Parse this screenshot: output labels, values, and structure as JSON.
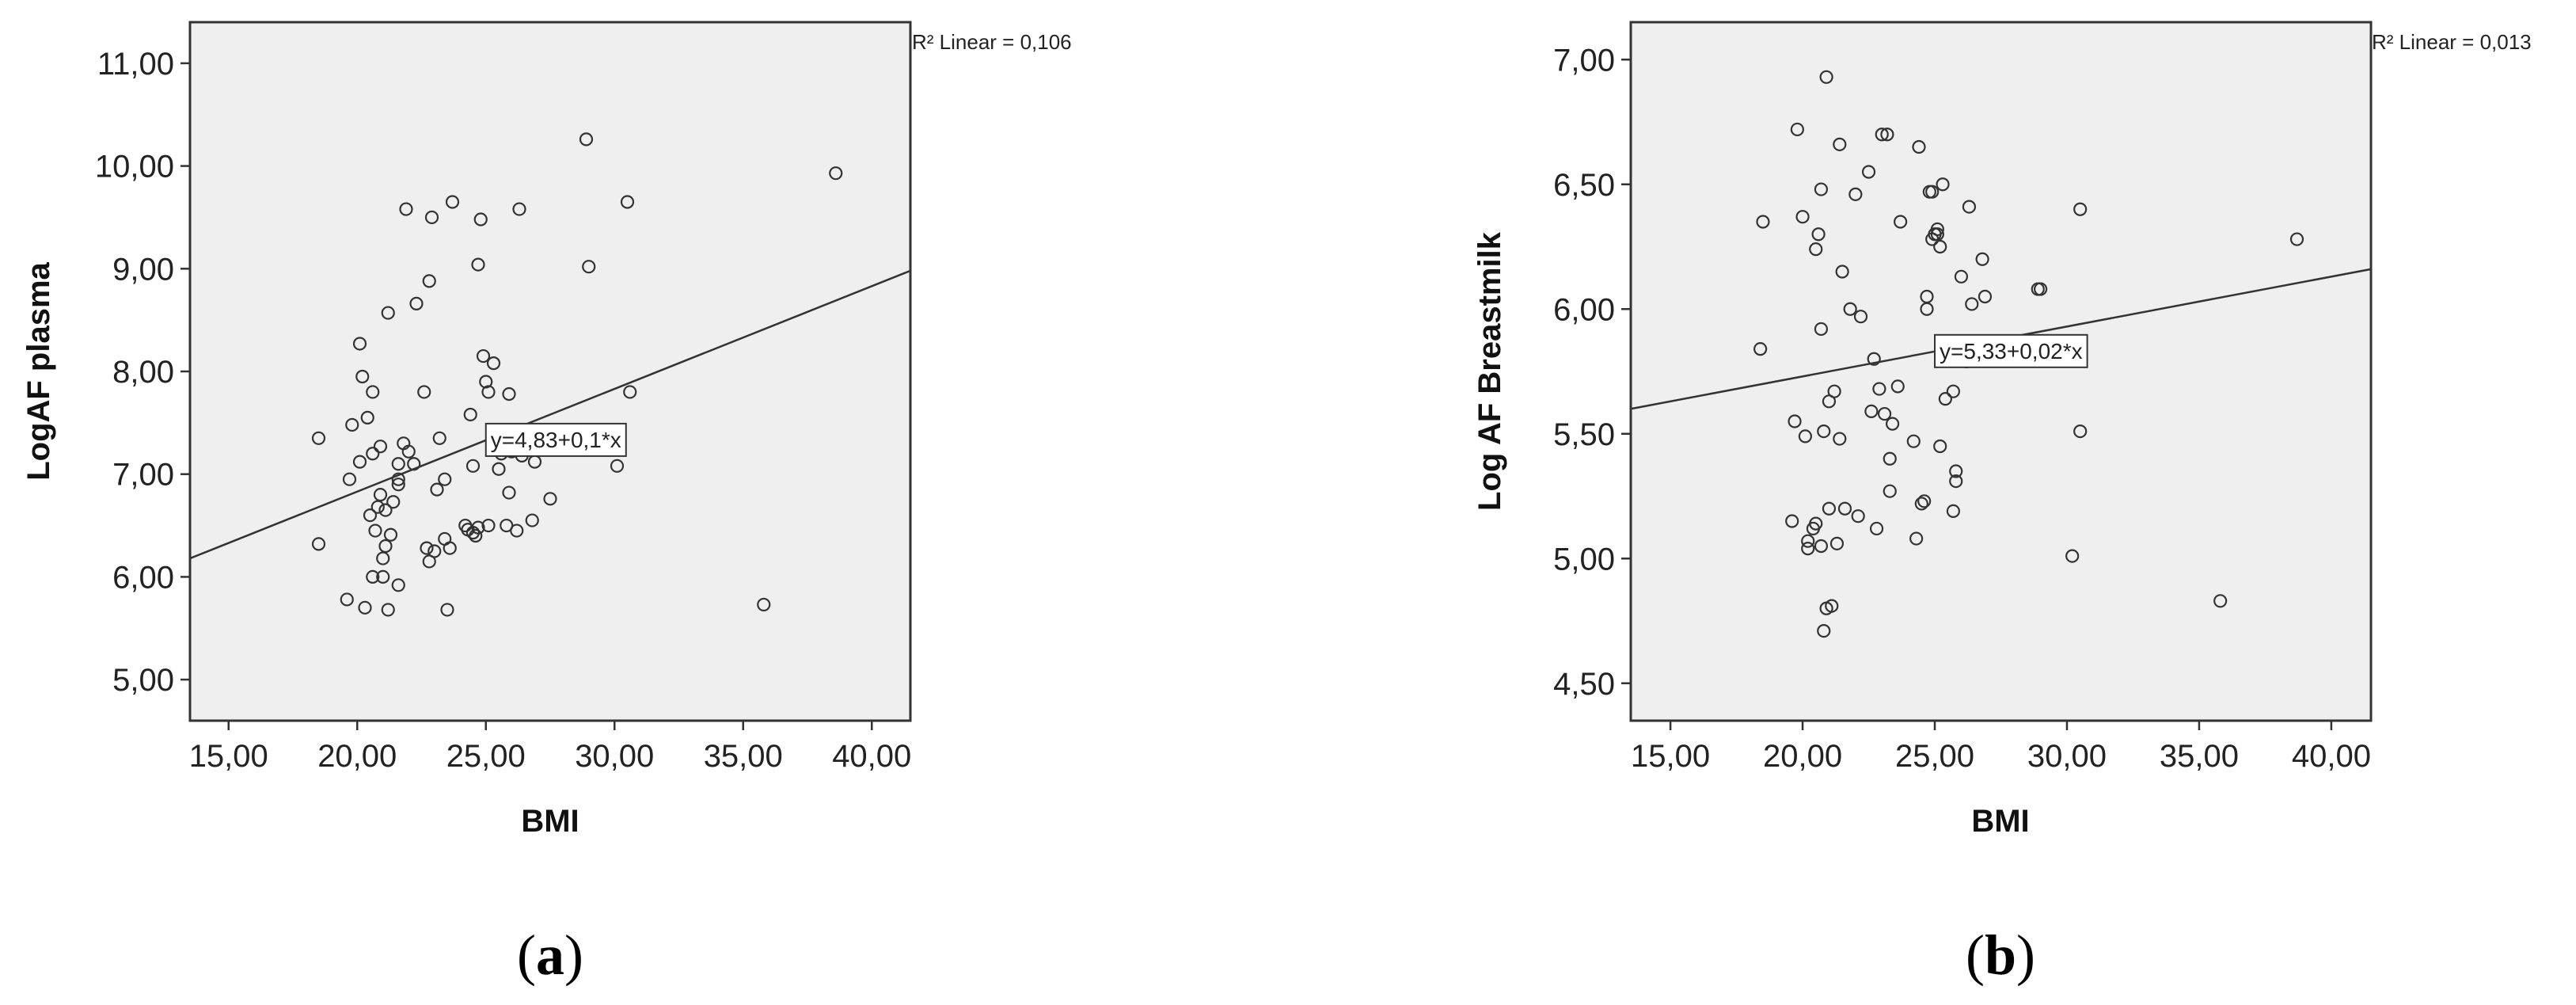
{
  "chart_data": [
    {
      "type": "scatter",
      "panel_label": "a",
      "xlabel": "BMI",
      "ylabel": "LogAF plasma",
      "xlim": [
        13.5,
        41.5
      ],
      "ylim": [
        4.6,
        11.4
      ],
      "x_ticks": [
        "15,00",
        "20,00",
        "25,00",
        "30,00",
        "35,00",
        "40,00"
      ],
      "y_ticks": [
        "5,00",
        "6,00",
        "7,00",
        "8,00",
        "9,00",
        "10,00",
        "11,00"
      ],
      "r2_label": "R² Linear = 0,106",
      "fit_label": "y=4,83+0,1*x",
      "fit": {
        "intercept": 4.83,
        "slope": 0.1
      },
      "grid": false,
      "points": [
        [
          18.5,
          6.32
        ],
        [
          18.5,
          7.35
        ],
        [
          19.6,
          5.78
        ],
        [
          19.7,
          6.95
        ],
        [
          19.8,
          7.48
        ],
        [
          20.1,
          7.12
        ],
        [
          20.1,
          8.27
        ],
        [
          20.2,
          7.95
        ],
        [
          20.3,
          5.7
        ],
        [
          20.4,
          7.55
        ],
        [
          20.5,
          6.6
        ],
        [
          20.6,
          6.0
        ],
        [
          20.6,
          7.2
        ],
        [
          20.6,
          7.8
        ],
        [
          20.7,
          6.45
        ],
        [
          20.8,
          6.68
        ],
        [
          20.9,
          6.8
        ],
        [
          20.9,
          7.27
        ],
        [
          21.0,
          6.0
        ],
        [
          21.0,
          6.18
        ],
        [
          21.1,
          6.3
        ],
        [
          21.1,
          6.65
        ],
        [
          21.2,
          5.68
        ],
        [
          21.2,
          8.57
        ],
        [
          21.3,
          6.41
        ],
        [
          21.4,
          6.73
        ],
        [
          21.6,
          6.9
        ],
        [
          21.6,
          6.95
        ],
        [
          21.6,
          7.1
        ],
        [
          21.6,
          5.92
        ],
        [
          21.8,
          7.3
        ],
        [
          21.9,
          9.58
        ],
        [
          22.0,
          7.22
        ],
        [
          22.2,
          7.1
        ],
        [
          22.3,
          8.66
        ],
        [
          22.6,
          7.8
        ],
        [
          22.7,
          6.28
        ],
        [
          22.8,
          6.15
        ],
        [
          22.8,
          8.88
        ],
        [
          22.9,
          9.5
        ],
        [
          23.0,
          6.25
        ],
        [
          23.1,
          6.85
        ],
        [
          23.2,
          7.35
        ],
        [
          23.4,
          6.95
        ],
        [
          23.4,
          6.37
        ],
        [
          23.5,
          5.68
        ],
        [
          23.6,
          6.28
        ],
        [
          23.7,
          9.65
        ],
        [
          24.2,
          6.5
        ],
        [
          24.3,
          6.46
        ],
        [
          24.4,
          7.58
        ],
        [
          24.5,
          6.43
        ],
        [
          24.5,
          7.08
        ],
        [
          24.6,
          6.4
        ],
        [
          24.7,
          9.04
        ],
        [
          24.7,
          6.48
        ],
        [
          24.8,
          9.48
        ],
        [
          24.9,
          8.15
        ],
        [
          25.0,
          7.9
        ],
        [
          25.1,
          7.8
        ],
        [
          25.1,
          6.5
        ],
        [
          25.3,
          7.4
        ],
        [
          25.3,
          8.08
        ],
        [
          25.5,
          7.05
        ],
        [
          25.6,
          7.2
        ],
        [
          25.8,
          6.5
        ],
        [
          25.9,
          7.78
        ],
        [
          25.9,
          6.82
        ],
        [
          26.0,
          7.22
        ],
        [
          26.2,
          6.45
        ],
        [
          26.3,
          9.58
        ],
        [
          26.4,
          7.18
        ],
        [
          26.8,
          6.55
        ],
        [
          26.9,
          7.12
        ],
        [
          27.5,
          6.76
        ],
        [
          28.9,
          10.26
        ],
        [
          29.0,
          9.02
        ],
        [
          30.1,
          7.08
        ],
        [
          30.5,
          9.65
        ],
        [
          30.6,
          7.8
        ],
        [
          35.8,
          5.73
        ],
        [
          38.6,
          9.93
        ]
      ]
    },
    {
      "type": "scatter",
      "panel_label": "b",
      "xlabel": "BMI",
      "ylabel": "Log AF Breastmilk",
      "xlim": [
        13.5,
        41.5
      ],
      "ylim": [
        4.35,
        7.15
      ],
      "x_ticks": [
        "15,00",
        "20,00",
        "25,00",
        "30,00",
        "35,00",
        "40,00"
      ],
      "y_ticks": [
        "4,50",
        "5,00",
        "5,50",
        "6,00",
        "6,50",
        "7,00"
      ],
      "r2_label": "R² Linear = 0,013",
      "fit_label": "y=5,33+0,02*x",
      "fit": {
        "intercept": 5.33,
        "slope": 0.02
      },
      "grid": false,
      "points": [
        [
          18.4,
          5.84
        ],
        [
          18.5,
          6.35
        ],
        [
          19.6,
          5.15
        ],
        [
          19.7,
          5.55
        ],
        [
          19.8,
          6.72
        ],
        [
          20.0,
          6.37
        ],
        [
          20.1,
          5.49
        ],
        [
          20.2,
          5.07
        ],
        [
          20.2,
          5.04
        ],
        [
          20.4,
          5.12
        ],
        [
          20.5,
          5.14
        ],
        [
          20.5,
          6.24
        ],
        [
          20.6,
          6.3
        ],
        [
          20.7,
          5.05
        ],
        [
          20.7,
          5.92
        ],
        [
          20.7,
          6.48
        ],
        [
          20.8,
          4.71
        ],
        [
          20.8,
          5.51
        ],
        [
          20.9,
          6.93
        ],
        [
          20.9,
          4.8
        ],
        [
          21.0,
          5.63
        ],
        [
          21.0,
          5.2
        ],
        [
          21.1,
          4.81
        ],
        [
          21.2,
          5.67
        ],
        [
          21.3,
          5.06
        ],
        [
          21.4,
          6.66
        ],
        [
          21.4,
          5.48
        ],
        [
          21.5,
          6.15
        ],
        [
          21.6,
          5.2
        ],
        [
          21.8,
          6.0
        ],
        [
          22.0,
          6.46
        ],
        [
          22.1,
          5.17
        ],
        [
          22.2,
          5.97
        ],
        [
          22.5,
          6.55
        ],
        [
          22.6,
          5.59
        ],
        [
          22.7,
          5.8
        ],
        [
          22.8,
          5.12
        ],
        [
          22.9,
          5.68
        ],
        [
          23.0,
          6.7
        ],
        [
          23.1,
          5.58
        ],
        [
          23.2,
          6.7
        ],
        [
          23.3,
          5.4
        ],
        [
          23.3,
          5.27
        ],
        [
          23.4,
          5.54
        ],
        [
          23.6,
          5.69
        ],
        [
          23.7,
          6.35
        ],
        [
          24.2,
          5.47
        ],
        [
          24.3,
          5.08
        ],
        [
          24.4,
          6.65
        ],
        [
          24.5,
          5.22
        ],
        [
          24.6,
          5.23
        ],
        [
          24.7,
          6.05
        ],
        [
          24.7,
          6.0
        ],
        [
          24.8,
          6.47
        ],
        [
          24.9,
          6.47
        ],
        [
          24.9,
          6.28
        ],
        [
          25.0,
          6.3
        ],
        [
          25.1,
          6.32
        ],
        [
          25.1,
          6.3
        ],
        [
          25.2,
          6.25
        ],
        [
          25.2,
          5.45
        ],
        [
          25.3,
          6.5
        ],
        [
          25.4,
          5.64
        ],
        [
          25.7,
          5.67
        ],
        [
          25.7,
          5.19
        ],
        [
          25.8,
          5.35
        ],
        [
          25.8,
          5.31
        ],
        [
          26.0,
          6.13
        ],
        [
          26.2,
          5.79
        ],
        [
          26.3,
          6.41
        ],
        [
          26.4,
          6.02
        ],
        [
          26.8,
          6.2
        ],
        [
          26.9,
          6.05
        ],
        [
          28.9,
          6.08
        ],
        [
          29.0,
          6.08
        ],
        [
          30.2,
          5.01
        ],
        [
          30.5,
          6.4
        ],
        [
          30.5,
          5.51
        ],
        [
          35.8,
          4.83
        ],
        [
          38.7,
          6.28
        ]
      ]
    }
  ]
}
